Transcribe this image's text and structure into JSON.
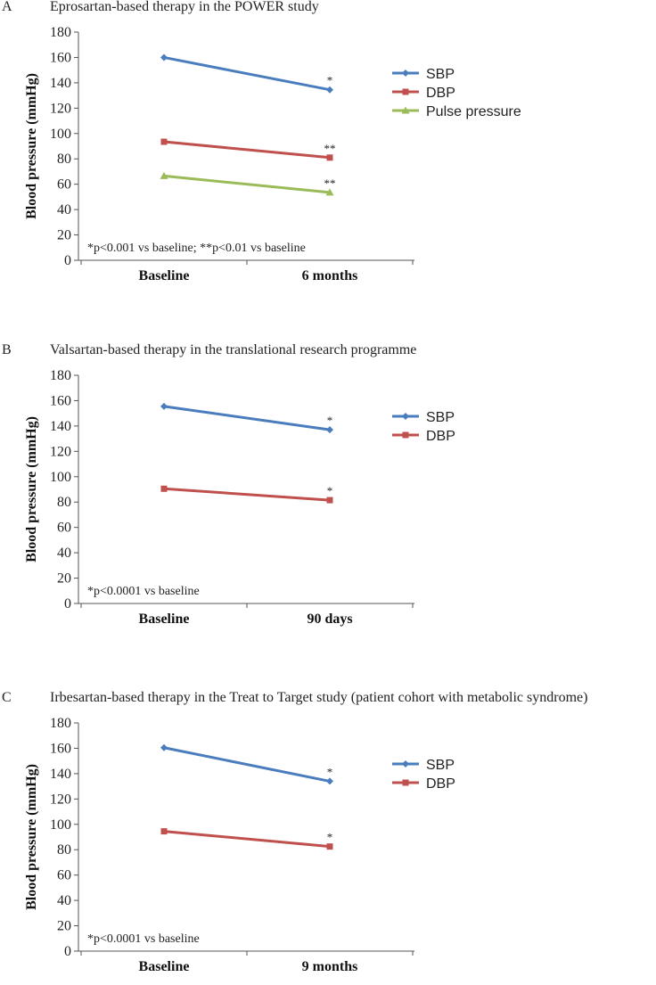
{
  "colors": {
    "SBP": "#4a7dbd",
    "DBP": "#c0504d",
    "Pulse pressure": "#9bbb59",
    "axis": "#555555"
  },
  "chart_data": [
    {
      "type": "line",
      "letter": "A",
      "title": "Eprosartan-based therapy in the POWER study",
      "ylabel": "Blood pressure (mmHg)",
      "xlabel": "",
      "categories": [
        "Baseline",
        "6 months"
      ],
      "ylim": [
        0,
        180
      ],
      "yticks": [
        0,
        20,
        40,
        60,
        80,
        100,
        120,
        140,
        160,
        180
      ],
      "grid": false,
      "legend_position": "right",
      "series": [
        {
          "name": "SBP",
          "marker": "diamond",
          "values": [
            160,
            134.5
          ],
          "annotations": [
            "",
            "*"
          ]
        },
        {
          "name": "DBP",
          "marker": "square",
          "values": [
            93.5,
            81
          ],
          "annotations": [
            "",
            "**"
          ]
        },
        {
          "name": "Pulse pressure",
          "marker": "triangle",
          "values": [
            66.5,
            53.5
          ],
          "annotations": [
            "",
            "**"
          ]
        }
      ],
      "note": "*p<0.001 vs baseline; **p<0.01 vs baseline"
    },
    {
      "type": "line",
      "letter": "B",
      "title": "Valsartan-based therapy in the translational research programme",
      "ylabel": "Blood pressure (mmHg)",
      "xlabel": "",
      "categories": [
        "Baseline",
        "90 days"
      ],
      "ylim": [
        0,
        180
      ],
      "yticks": [
        0,
        20,
        40,
        60,
        80,
        100,
        120,
        140,
        160,
        180
      ],
      "grid": false,
      "legend_position": "right",
      "series": [
        {
          "name": "SBP",
          "marker": "diamond",
          "values": [
            155.5,
            137
          ],
          "annotations": [
            "",
            "*"
          ]
        },
        {
          "name": "DBP",
          "marker": "square",
          "values": [
            90.5,
            81.5
          ],
          "annotations": [
            "",
            "*"
          ]
        }
      ],
      "note": "*p<0.0001 vs baseline"
    },
    {
      "type": "line",
      "letter": "C",
      "title": "Irbesartan-based therapy in the Treat to Target study (patient cohort with metabolic syndrome)",
      "ylabel": "Blood pressure (mmHg)",
      "xlabel": "",
      "categories": [
        "Baseline",
        "9 months"
      ],
      "ylim": [
        0,
        180
      ],
      "yticks": [
        0,
        20,
        40,
        60,
        80,
        100,
        120,
        140,
        160,
        180
      ],
      "grid": false,
      "legend_position": "right",
      "series": [
        {
          "name": "SBP",
          "marker": "diamond",
          "values": [
            160.5,
            134
          ],
          "annotations": [
            "",
            "*"
          ]
        },
        {
          "name": "DBP",
          "marker": "square",
          "values": [
            94.5,
            82.5
          ],
          "annotations": [
            "",
            "*"
          ]
        }
      ],
      "note": "*p<0.0001 vs baseline"
    }
  ]
}
